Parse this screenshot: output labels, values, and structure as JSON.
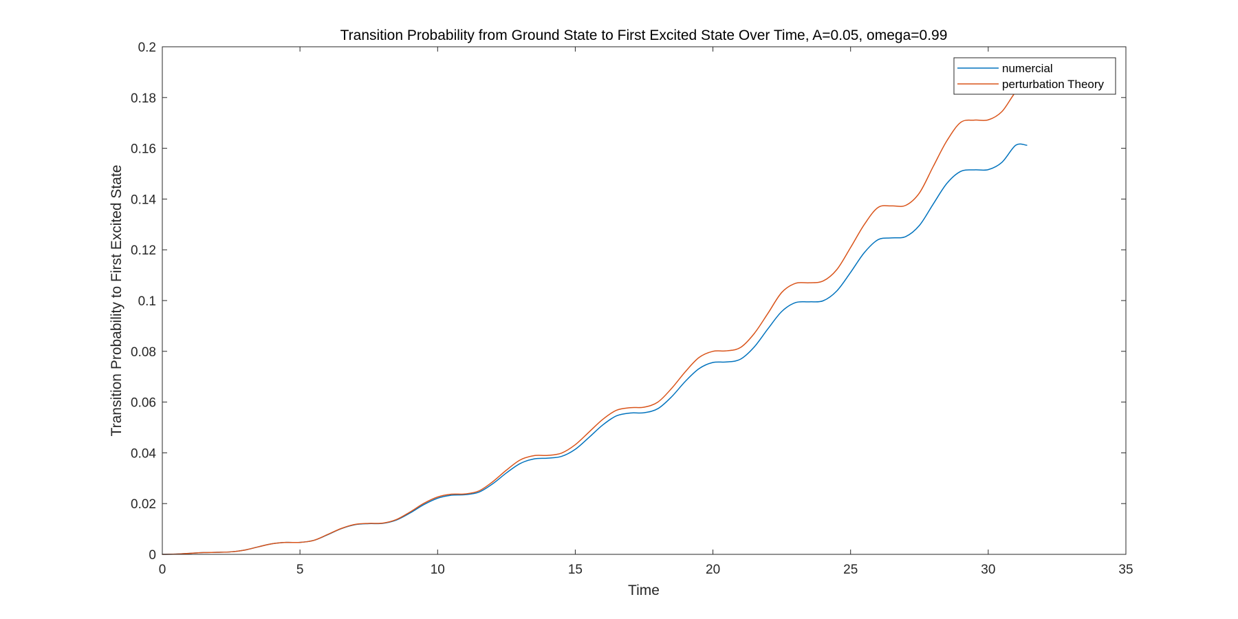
{
  "chart_data": {
    "type": "line",
    "title": "Transition Probability from Ground State to First Excited State Over Time, A=0.05, omega=0.99",
    "xlabel": "Time",
    "ylabel": "Transition Probability to First Excited State",
    "xlim": [
      0,
      35
    ],
    "ylim": [
      0,
      0.2
    ],
    "xticks": [
      0,
      5,
      10,
      15,
      20,
      25,
      30,
      35
    ],
    "xtick_labels": [
      "0",
      "5",
      "10",
      "15",
      "20",
      "25",
      "30",
      "35"
    ],
    "yticks": [
      0,
      0.02,
      0.04,
      0.06,
      0.08,
      0.1,
      0.12,
      0.14,
      0.16,
      0.18,
      0.2
    ],
    "ytick_labels": [
      "0",
      "0.02",
      "0.04",
      "0.06",
      "0.08",
      "0.1",
      "0.12",
      "0.14",
      "0.16",
      "0.18",
      "0.2"
    ],
    "grid": false,
    "legend_position": "top-right",
    "series": [
      {
        "name": "numercial",
        "color": "#0072BD",
        "x": [
          0,
          0.5,
          1,
          1.5,
          2,
          2.5,
          3,
          3.5,
          4,
          4.5,
          5,
          5.5,
          6,
          6.5,
          7,
          7.5,
          8,
          8.5,
          9,
          9.5,
          10,
          10.5,
          11,
          11.5,
          12,
          12.5,
          13,
          13.5,
          14,
          14.5,
          15,
          15.5,
          16,
          16.5,
          17,
          17.5,
          18,
          18.5,
          19,
          19.5,
          20,
          20.5,
          21,
          21.5,
          22,
          22.5,
          23,
          23.5,
          24,
          24.5,
          25,
          25.5,
          26,
          26.5,
          27,
          27.5,
          28,
          28.5,
          29,
          29.5,
          30,
          30.5,
          31,
          31.4
        ],
        "y": [
          0,
          0.0001,
          0.0004,
          0.0007,
          0.0008,
          0.001,
          0.0017,
          0.003,
          0.0042,
          0.0047,
          0.0047,
          0.0055,
          0.0077,
          0.0101,
          0.0117,
          0.0121,
          0.0122,
          0.0135,
          0.0163,
          0.0196,
          0.0221,
          0.0233,
          0.0235,
          0.0245,
          0.0278,
          0.0321,
          0.0358,
          0.0376,
          0.0379,
          0.0386,
          0.0414,
          0.0461,
          0.051,
          0.0546,
          0.0557,
          0.0558,
          0.0574,
          0.0621,
          0.0682,
          0.0732,
          0.0756,
          0.0758,
          0.0769,
          0.0817,
          0.0889,
          0.0957,
          0.0992,
          0.0995,
          0.0999,
          0.1038,
          0.1111,
          0.1189,
          0.124,
          0.1247,
          0.1252,
          0.1296,
          0.138,
          0.1462,
          0.1509,
          0.1515,
          0.1516,
          0.1545,
          0.1612,
          0.1612
        ]
      },
      {
        "name": "perturbation Theory",
        "color": "#D95319",
        "x": [
          0,
          0.5,
          1,
          1.5,
          2,
          2.5,
          3,
          3.5,
          4,
          4.5,
          5,
          5.5,
          6,
          6.5,
          7,
          7.5,
          8,
          8.5,
          9,
          9.5,
          10,
          10.5,
          11,
          11.5,
          12,
          12.5,
          13,
          13.5,
          14,
          14.5,
          15,
          15.5,
          16,
          16.5,
          17,
          17.5,
          18,
          18.5,
          19,
          19.5,
          20,
          20.5,
          21,
          21.5,
          22,
          22.5,
          23,
          23.5,
          24,
          24.5,
          25,
          25.5,
          26,
          26.5,
          27,
          27.5,
          28,
          28.5,
          29,
          29.5,
          30,
          30.5,
          31,
          31.4
        ],
        "y": [
          0,
          0.0001,
          0.0004,
          0.0007,
          0.0008,
          0.001,
          0.0017,
          0.003,
          0.0042,
          0.0047,
          0.0047,
          0.0055,
          0.0078,
          0.0102,
          0.0118,
          0.0122,
          0.0123,
          0.0137,
          0.0167,
          0.0201,
          0.0226,
          0.0237,
          0.0238,
          0.025,
          0.0286,
          0.0332,
          0.0372,
          0.0389,
          0.039,
          0.0399,
          0.0432,
          0.0482,
          0.0532,
          0.0568,
          0.0578,
          0.058,
          0.06,
          0.0654,
          0.072,
          0.0776,
          0.08,
          0.0802,
          0.0815,
          0.087,
          0.095,
          0.1032,
          0.1068,
          0.107,
          0.1077,
          0.1122,
          0.1209,
          0.13,
          0.1367,
          0.1373,
          0.1375,
          0.1424,
          0.1528,
          0.163,
          0.1702,
          0.1711,
          0.1712,
          0.1745,
          0.1822,
          0.185
        ]
      }
    ]
  }
}
